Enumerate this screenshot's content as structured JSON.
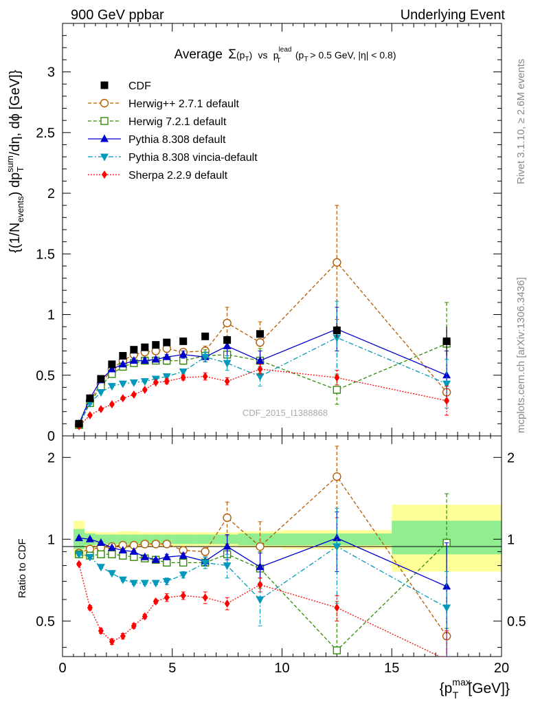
{
  "header": {
    "left": "900 GeV ppbar",
    "right": "Underlying Event"
  },
  "side_labels": {
    "rivet": "Rivet 3.1.10, ≥ 2.6M events",
    "mcplots": "mcplots.cern.ch [arXiv:1306.3436]"
  },
  "watermark": "CDF_2015_I1388868",
  "title": {
    "prefix": "Average",
    "sigma": "Σ",
    "pt": "(p",
    "pt_sub": "T",
    "pt_close": ")",
    "vs": "vs",
    "p": "p",
    "p_sup": "lead",
    "p_sub": "T",
    "cut_open": "(p",
    "cut_sub": "T",
    "cut_rest": "> 0.5 GeV, |η| < 0.8)"
  },
  "axis_labels": {
    "y_main": {
      "p1": "{(1/N",
      "p1_sub": "events",
      "p2": ") dp",
      "p2_sup": "sum",
      "p2_sub": "T",
      "p3": "/dη, dϕ [GeV]}"
    },
    "y_ratio": "Ratio to CDF",
    "x": {
      "p1": "{p",
      "sup": "max",
      "sub": "T",
      "p2": "[GeV]}"
    }
  },
  "chart_data": [
    {
      "type": "scatter",
      "panel": "main",
      "xlim": [
        0,
        20
      ],
      "ylim": [
        0,
        3.4
      ],
      "x_ticks": [
        "0",
        "5",
        "10",
        "15",
        "20"
      ],
      "y_ticks": [
        "0",
        "0.5",
        "1",
        "1.5",
        "2",
        "2.5",
        "3"
      ],
      "legend_position": "top-left",
      "x": [
        0.75,
        1.25,
        1.75,
        2.25,
        2.75,
        3.25,
        3.75,
        4.25,
        4.75,
        5.5,
        6.5,
        7.5,
        9.0,
        12.5,
        17.5
      ],
      "x_half_widths": [
        0.25,
        0.25,
        0.25,
        0.25,
        0.25,
        0.25,
        0.25,
        0.25,
        0.25,
        0.5,
        0.5,
        0.5,
        1.0,
        2.5,
        2.5
      ],
      "series": [
        {
          "name": "CDF",
          "color": "#000000",
          "marker": "square",
          "line": "none",
          "values": [
            0.1,
            0.31,
            0.47,
            0.59,
            0.66,
            0.71,
            0.73,
            0.75,
            0.77,
            0.78,
            0.82,
            0.79,
            0.84,
            0.87,
            0.78
          ],
          "errors": [
            0.01,
            0.02,
            0.02,
            0.02,
            0.02,
            0.02,
            0.02,
            0.02,
            0.02,
            0.02,
            0.02,
            0.03,
            0.03,
            0.06,
            0.12
          ]
        },
        {
          "name": "Herwig++ 2.7.1 default",
          "color": "#b35900",
          "marker": "circle-open",
          "line": "dashed",
          "values": [
            0.09,
            0.29,
            0.43,
            0.55,
            0.62,
            0.67,
            0.69,
            0.7,
            0.72,
            0.69,
            0.7,
            0.93,
            0.77,
            1.43,
            0.36
          ],
          "errors": [
            0.01,
            0.01,
            0.01,
            0.01,
            0.01,
            0.02,
            0.02,
            0.03,
            0.03,
            0.03,
            0.04,
            0.13,
            0.17,
            0.47,
            0.0
          ]
        },
        {
          "name": "Herwig 7.2.1 default",
          "color": "#2e8b00",
          "marker": "square-open",
          "line": "dashed",
          "values": [
            0.09,
            0.27,
            0.41,
            0.51,
            0.57,
            0.6,
            0.62,
            0.62,
            0.62,
            0.62,
            0.66,
            0.67,
            0.62,
            0.38,
            0.76
          ],
          "errors": [
            0.01,
            0.01,
            0.01,
            0.01,
            0.01,
            0.02,
            0.02,
            0.02,
            0.03,
            0.03,
            0.05,
            0.06,
            0.1,
            0.12,
            0.34
          ]
        },
        {
          "name": "Pythia 8.308 default",
          "color": "#0000cc",
          "marker": "triangle-up",
          "line": "solid",
          "values": [
            0.1,
            0.31,
            0.46,
            0.55,
            0.59,
            0.62,
            0.62,
            0.63,
            0.65,
            0.67,
            0.65,
            0.74,
            0.62,
            0.88,
            0.5
          ],
          "errors": [
            0.01,
            0.01,
            0.01,
            0.01,
            0.01,
            0.02,
            0.02,
            0.02,
            0.02,
            0.03,
            0.04,
            0.08,
            0.08,
            0.18,
            0.2
          ]
        },
        {
          "name": "Pythia 8.308 vincia-default",
          "color": "#0099bb",
          "marker": "triangle-down",
          "line": "dashdot",
          "values": [
            0.09,
            0.27,
            0.36,
            0.41,
            0.43,
            0.44,
            0.45,
            0.47,
            0.49,
            0.53,
            0.65,
            0.6,
            0.49,
            0.81,
            0.43
          ],
          "errors": [
            0.01,
            0.01,
            0.01,
            0.01,
            0.01,
            0.01,
            0.01,
            0.02,
            0.02,
            0.02,
            0.04,
            0.06,
            0.08,
            0.3,
            0.2
          ]
        },
        {
          "name": "Sherpa 2.2.9 default",
          "color": "#ff0000",
          "marker": "diamond",
          "line": "dotted",
          "values": [
            0.08,
            0.17,
            0.22,
            0.26,
            0.31,
            0.34,
            0.38,
            0.44,
            0.45,
            0.48,
            0.49,
            0.45,
            0.55,
            0.48,
            0.29
          ],
          "errors": [
            0.005,
            0.01,
            0.01,
            0.01,
            0.01,
            0.01,
            0.01,
            0.01,
            0.02,
            0.02,
            0.03,
            0.03,
            0.04,
            0.06,
            0.12
          ]
        }
      ]
    },
    {
      "type": "scatter",
      "panel": "ratio",
      "xlim": [
        0,
        20
      ],
      "ylim": [
        0.37,
        2.4
      ],
      "log_y": true,
      "x_ticks": [
        "0",
        "5",
        "10",
        "15",
        "20"
      ],
      "y_ticks": [
        "0.5",
        "1",
        "2"
      ],
      "x": [
        0.75,
        1.25,
        1.75,
        2.25,
        2.75,
        3.25,
        3.75,
        4.25,
        4.75,
        5.5,
        6.5,
        7.5,
        9.0,
        12.5,
        17.5
      ],
      "x_half_widths": [
        0.25,
        0.25,
        0.25,
        0.25,
        0.25,
        0.25,
        0.25,
        0.25,
        0.25,
        0.5,
        0.5,
        0.5,
        1.0,
        2.5,
        2.5
      ],
      "band_edges": [
        0.5,
        1.0,
        1.5,
        2.0,
        2.5,
        3.0,
        3.5,
        4.0,
        4.5,
        5.0,
        6.0,
        7.0,
        8.0,
        10.0,
        15.0,
        20.0
      ],
      "bands": {
        "inner": {
          "color": "#90ee90",
          "lower": [
            0.92,
            0.95,
            0.96,
            0.96,
            0.96,
            0.96,
            0.96,
            0.96,
            0.96,
            0.96,
            0.96,
            0.96,
            0.95,
            0.95,
            0.88
          ],
          "upper": [
            1.09,
            1.05,
            1.04,
            1.04,
            1.04,
            1.04,
            1.04,
            1.04,
            1.04,
            1.04,
            1.04,
            1.04,
            1.05,
            1.05,
            1.17
          ]
        },
        "outer": {
          "color": "#ffff99",
          "lower": [
            0.85,
            0.93,
            0.94,
            0.94,
            0.93,
            0.93,
            0.94,
            0.94,
            0.94,
            0.94,
            0.94,
            0.94,
            0.93,
            0.92,
            0.76
          ],
          "upper": [
            1.17,
            1.07,
            1.06,
            1.06,
            1.07,
            1.07,
            1.06,
            1.06,
            1.06,
            1.06,
            1.06,
            1.06,
            1.07,
            1.08,
            1.34
          ]
        }
      },
      "series": [
        {
          "name": "Herwig++ 2.7.1 default",
          "color": "#b35900",
          "marker": "circle-open",
          "line": "dashed",
          "values": [
            0.89,
            0.92,
            0.93,
            0.94,
            0.95,
            0.95,
            0.96,
            0.96,
            0.96,
            0.91,
            0.9,
            1.2,
            0.94,
            1.7,
            0.44
          ],
          "errors": [
            0.01,
            0.01,
            0.01,
            0.01,
            0.01,
            0.01,
            0.01,
            0.01,
            0.02,
            0.02,
            0.03,
            0.17,
            0.22,
            0.5,
            0.0
          ]
        },
        {
          "name": "Herwig 7.2.1 default",
          "color": "#2e8b00",
          "marker": "square-open",
          "line": "dashed",
          "values": [
            0.88,
            0.87,
            0.88,
            0.88,
            0.87,
            0.86,
            0.85,
            0.84,
            0.82,
            0.82,
            0.82,
            0.88,
            0.78,
            0.39,
            0.97
          ],
          "errors": [
            0.01,
            0.01,
            0.01,
            0.01,
            0.01,
            0.01,
            0.01,
            0.02,
            0.02,
            0.02,
            0.04,
            0.08,
            0.12,
            0.2,
            0.5
          ]
        },
        {
          "name": "Pythia 8.308 default",
          "color": "#0000cc",
          "marker": "triangle-up",
          "line": "solid",
          "values": [
            1.01,
            1.0,
            0.97,
            0.93,
            0.91,
            0.9,
            0.86,
            0.84,
            0.86,
            0.87,
            0.83,
            0.94,
            0.79,
            1.01,
            0.67
          ],
          "errors": [
            0.01,
            0.01,
            0.01,
            0.01,
            0.01,
            0.01,
            0.01,
            0.01,
            0.02,
            0.02,
            0.03,
            0.1,
            0.1,
            0.25,
            0.3
          ]
        },
        {
          "name": "Pythia 8.308 vincia-default",
          "color": "#0099bb",
          "marker": "triangle-down",
          "line": "dashdot",
          "values": [
            0.88,
            0.86,
            0.79,
            0.75,
            0.71,
            0.69,
            0.69,
            0.69,
            0.7,
            0.74,
            0.82,
            0.8,
            0.6,
            0.94,
            0.56
          ],
          "errors": [
            0.01,
            0.01,
            0.01,
            0.01,
            0.01,
            0.01,
            0.01,
            0.01,
            0.02,
            0.02,
            0.04,
            0.08,
            0.12,
            0.36,
            0.2
          ]
        },
        {
          "name": "Sherpa 2.2.9 default",
          "color": "#ff0000",
          "marker": "diamond",
          "line": "dotted",
          "values": [
            0.81,
            0.56,
            0.46,
            0.42,
            0.44,
            0.48,
            0.52,
            0.59,
            0.61,
            0.62,
            0.61,
            0.58,
            0.68,
            0.56,
            0.36
          ],
          "errors": [
            0.01,
            0.01,
            0.01,
            0.01,
            0.01,
            0.01,
            0.01,
            0.01,
            0.02,
            0.02,
            0.03,
            0.03,
            0.04,
            0.06,
            0.1
          ]
        }
      ]
    }
  ]
}
